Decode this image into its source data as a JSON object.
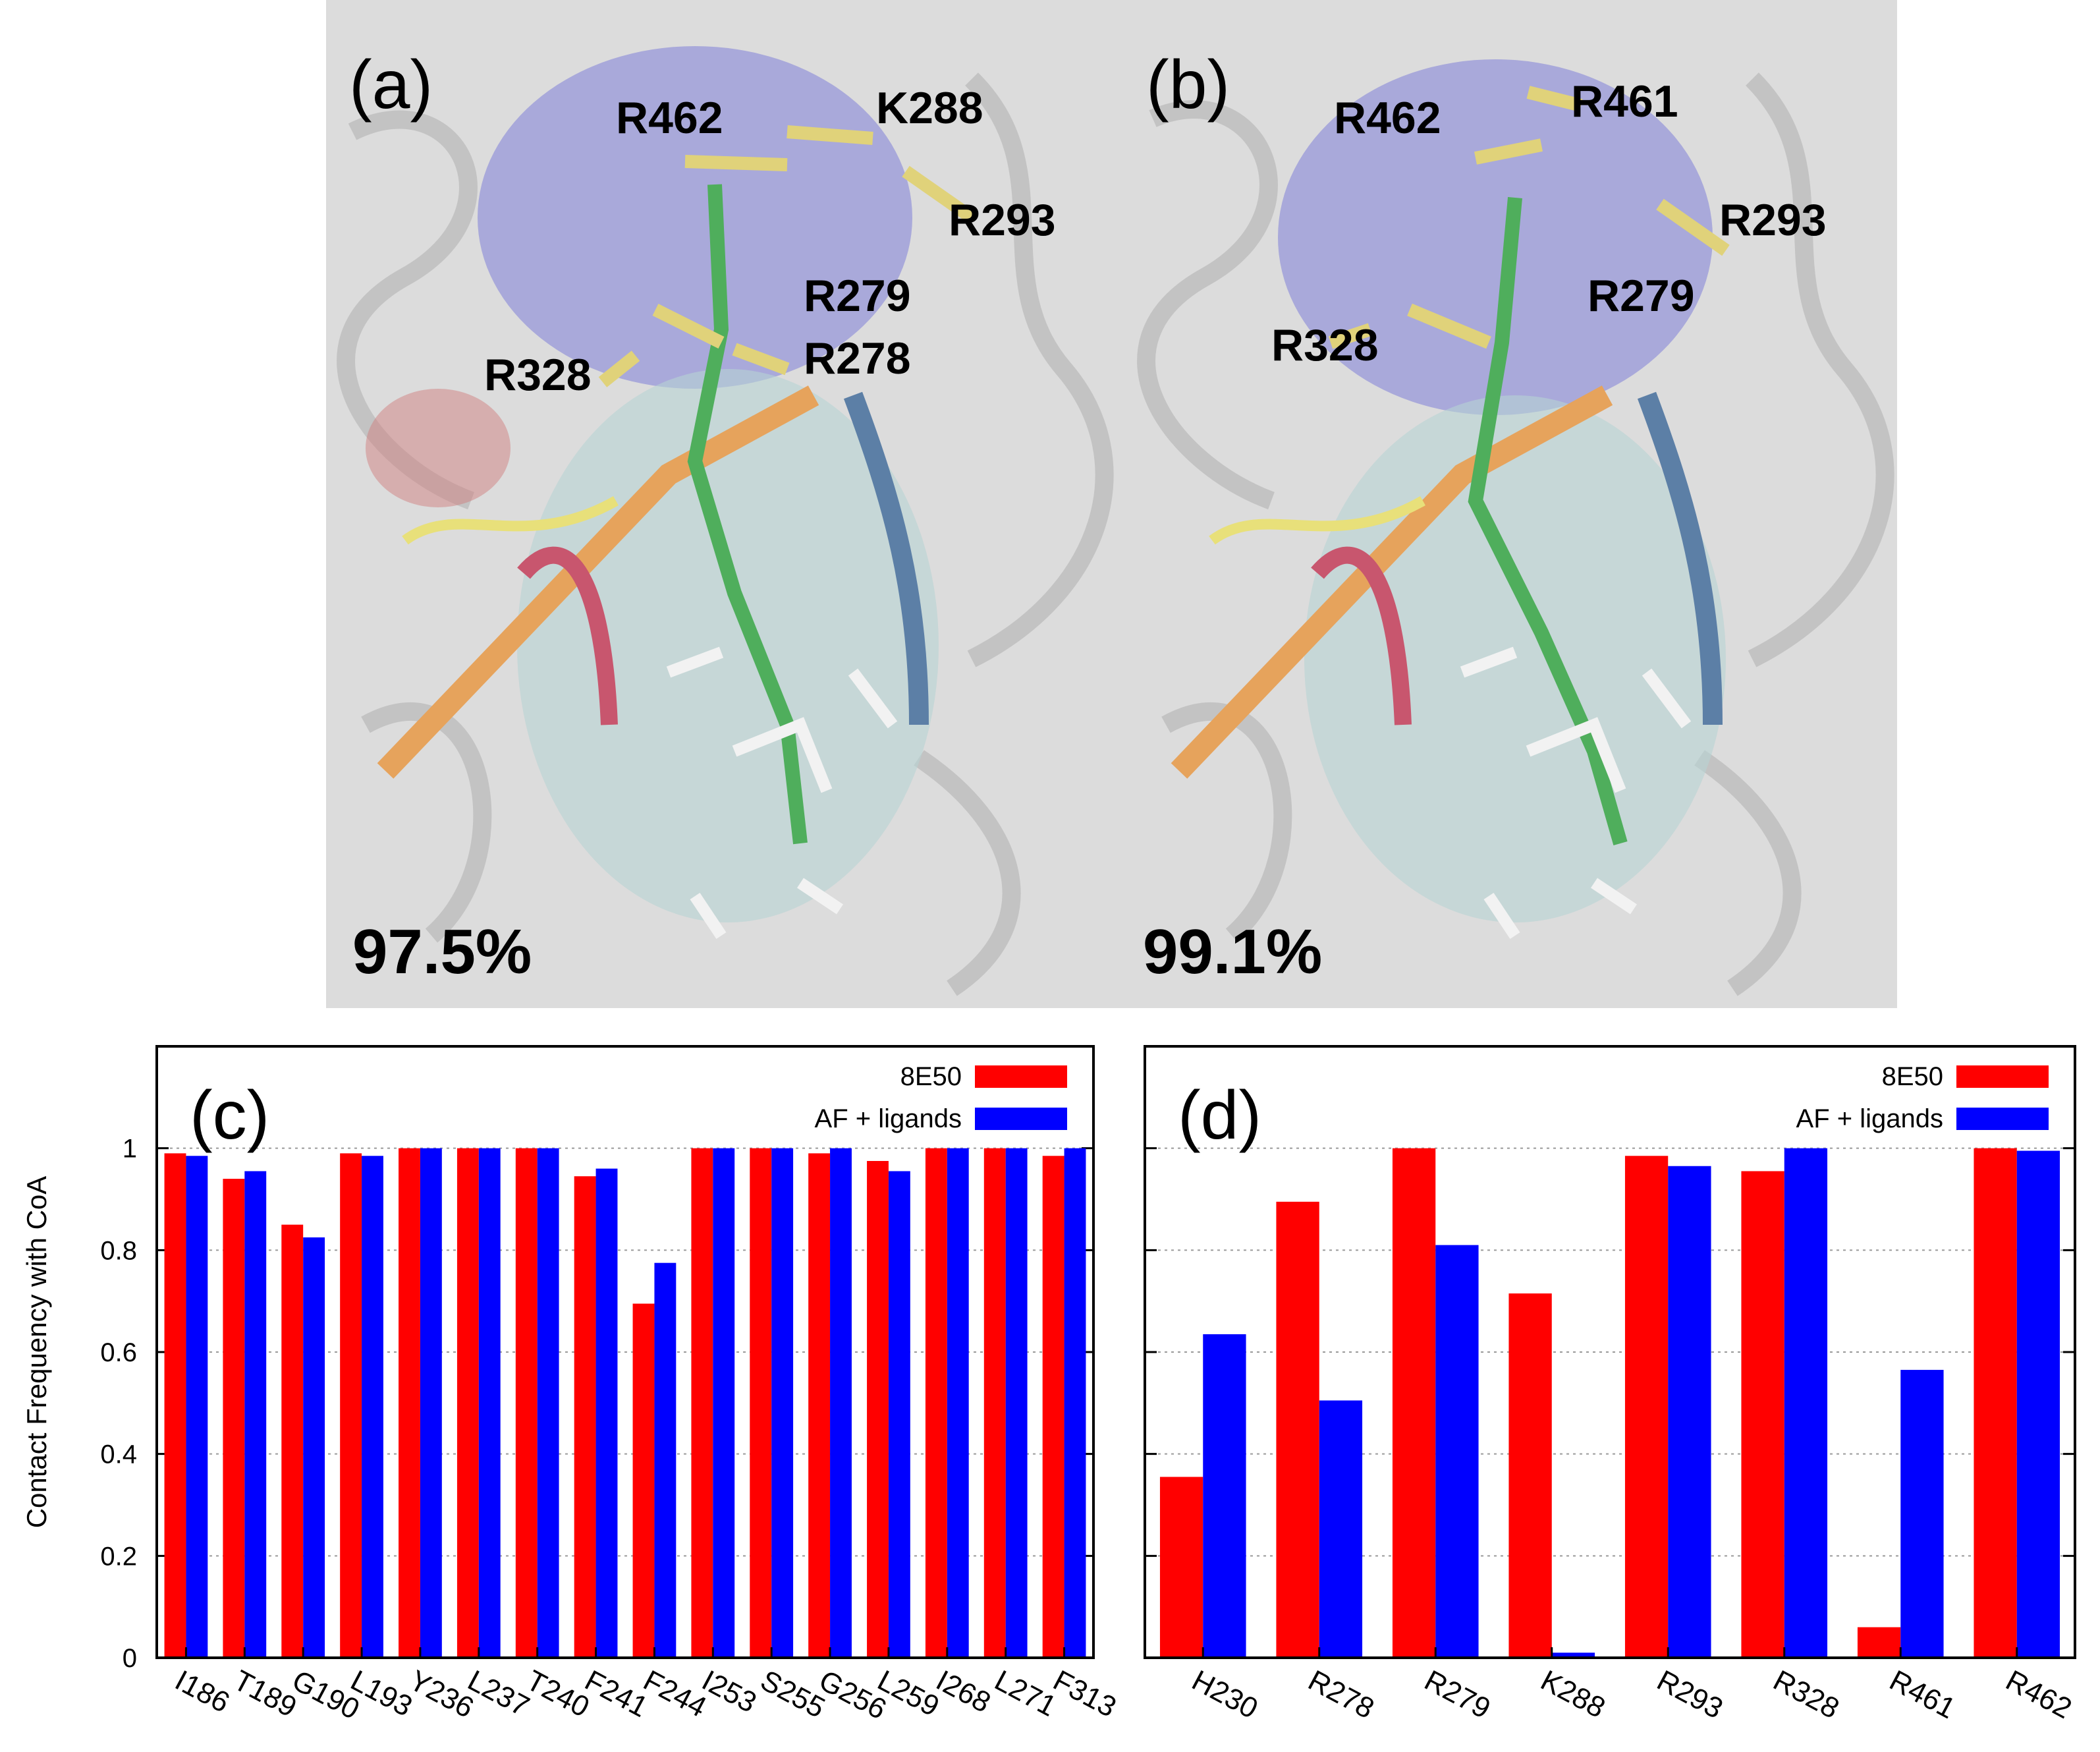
{
  "panels": {
    "a": {
      "label": "(a)",
      "percent": "97.5%",
      "residues": [
        "R462",
        "K288",
        "R293",
        "R279",
        "R278",
        "R328"
      ]
    },
    "b": {
      "label": "(b)",
      "percent": "99.1%",
      "residues": [
        "R462",
        "R461",
        "R293",
        "R279",
        "R328"
      ]
    }
  },
  "colors": {
    "series1": "#ff0000",
    "series2": "#0000ff",
    "grid": "#9a9a9a"
  },
  "chart_data": [
    {
      "panel_label": "(c)",
      "type": "bar",
      "ylabel": "Contact Frequency with CoA",
      "ylim": [
        0,
        1.2
      ],
      "yticks": [
        "0",
        "0.2",
        "0.4",
        "0.6",
        "0.8",
        "1"
      ],
      "grid": "horizontal dotted",
      "legend_position": "top-right",
      "categories": [
        "I186",
        "T189",
        "G190",
        "L193",
        "Y236",
        "L237",
        "T240",
        "F241",
        "F244",
        "I253",
        "S255",
        "G256",
        "L259",
        "I268",
        "L271",
        "F313"
      ],
      "series": [
        {
          "name": "8E50",
          "values": [
            0.99,
            0.94,
            0.85,
            0.99,
            1.0,
            1.0,
            1.0,
            0.945,
            0.695,
            1.0,
            1.0,
            0.99,
            0.975,
            1.0,
            1.0,
            0.985
          ]
        },
        {
          "name": "AF + ligands",
          "values": [
            0.985,
            0.955,
            0.825,
            0.985,
            1.0,
            1.0,
            1.0,
            0.96,
            0.775,
            1.0,
            1.0,
            1.0,
            0.955,
            1.0,
            1.0,
            1.0
          ]
        }
      ]
    },
    {
      "panel_label": "(d)",
      "type": "bar",
      "ylim": [
        0,
        1.2
      ],
      "grid": "horizontal dotted",
      "legend_position": "top-right",
      "categories": [
        "H230",
        "R278",
        "R279",
        "K288",
        "R293",
        "R328",
        "R461",
        "R462"
      ],
      "series": [
        {
          "name": "8E50",
          "values": [
            0.355,
            0.895,
            1.0,
            0.715,
            0.985,
            0.955,
            0.06,
            1.0
          ]
        },
        {
          "name": "AF + ligands",
          "values": [
            0.635,
            0.505,
            0.81,
            0.01,
            0.965,
            1.0,
            0.565,
            0.995
          ]
        }
      ]
    }
  ]
}
